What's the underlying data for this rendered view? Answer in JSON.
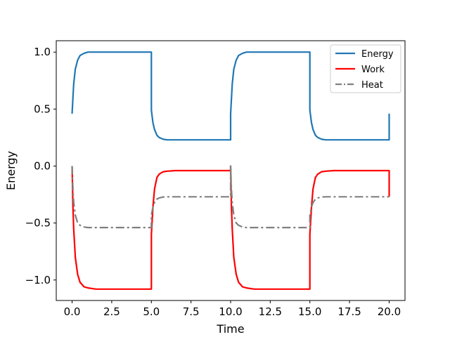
{
  "chart_data": {
    "type": "line",
    "xlabel": "Time",
    "ylabel": "Energy",
    "xlim": [
      -1.0,
      21.0
    ],
    "ylim": [
      -1.18,
      1.1
    ],
    "x_ticks": [
      0.0,
      2.5,
      5.0,
      7.5,
      10.0,
      12.5,
      15.0,
      17.5,
      20.0
    ],
    "x_tick_labels": [
      "0.0",
      "2.5",
      "5.0",
      "7.5",
      "10.0",
      "12.5",
      "15.0",
      "17.5",
      "20.0"
    ],
    "y_ticks": [
      -1.0,
      -0.5,
      0.0,
      0.5,
      1.0
    ],
    "y_tick_labels": [
      "−1.0",
      "−0.5",
      "0.0",
      "0.5",
      "1.0"
    ],
    "grid": false,
    "legend_position": "top-right",
    "series": [
      {
        "name": "Energy",
        "color": "#1f77b4",
        "style": "solid",
        "x": [
          0,
          0.1,
          0.2,
          0.35,
          0.5,
          0.75,
          1.0,
          1.5,
          2.0,
          5.0,
          5.0,
          5.1,
          5.2,
          5.35,
          5.5,
          5.75,
          6.0,
          6.5,
          7.0,
          10.0,
          10.0,
          10.1,
          10.2,
          10.35,
          10.5,
          10.75,
          11.0,
          11.5,
          12.0,
          15.0,
          15.0,
          15.1,
          15.2,
          15.35,
          15.5,
          15.75,
          16.0,
          16.5,
          17.0,
          20.0,
          20.0
        ],
        "y": [
          0.46,
          0.72,
          0.85,
          0.93,
          0.97,
          0.99,
          1.0,
          1.0,
          1.0,
          1.0,
          0.49,
          0.38,
          0.32,
          0.27,
          0.25,
          0.235,
          0.23,
          0.23,
          0.23,
          0.23,
          0.46,
          0.72,
          0.85,
          0.93,
          0.97,
          0.99,
          1.0,
          1.0,
          1.0,
          1.0,
          0.49,
          0.38,
          0.32,
          0.27,
          0.25,
          0.235,
          0.23,
          0.23,
          0.23,
          0.23,
          0.46
        ]
      },
      {
        "name": "Work",
        "color": "#ff0000",
        "style": "solid",
        "x": [
          0,
          0.05,
          0.1,
          0.2,
          0.35,
          0.5,
          0.75,
          1.0,
          1.5,
          2.0,
          5.0,
          5.0,
          5.1,
          5.2,
          5.35,
          5.5,
          5.75,
          6.0,
          6.5,
          7.0,
          10.0,
          10.0,
          10.05,
          10.1,
          10.2,
          10.35,
          10.5,
          10.75,
          11.0,
          11.5,
          12.0,
          15.0,
          15.0,
          15.1,
          15.2,
          15.35,
          15.5,
          15.75,
          16.0,
          16.5,
          17.0,
          20.0,
          20.0
        ],
        "y": [
          0.0,
          -0.35,
          -0.55,
          -0.8,
          -0.95,
          -1.02,
          -1.06,
          -1.07,
          -1.08,
          -1.08,
          -1.08,
          -0.6,
          -0.36,
          -0.2,
          -0.1,
          -0.07,
          -0.05,
          -0.045,
          -0.04,
          -0.04,
          -0.04,
          0.0,
          -0.35,
          -0.55,
          -0.8,
          -0.95,
          -1.02,
          -1.06,
          -1.07,
          -1.08,
          -1.08,
          -1.08,
          -0.6,
          -0.36,
          -0.2,
          -0.1,
          -0.07,
          -0.05,
          -0.045,
          -0.04,
          -0.04,
          -0.04,
          -0.27
        ]
      },
      {
        "name": "Heat",
        "color": "#808080",
        "style": "dashdot",
        "x": [
          0,
          0.05,
          0.1,
          0.2,
          0.35,
          0.5,
          0.75,
          1.0,
          1.5,
          2.0,
          5.0,
          5.0,
          5.1,
          5.2,
          5.35,
          5.5,
          5.75,
          6.0,
          6.5,
          7.0,
          10.0,
          10.0,
          10.05,
          10.1,
          10.2,
          10.35,
          10.5,
          10.75,
          11.0,
          11.5,
          12.0,
          15.0,
          15.0,
          15.1,
          15.2,
          15.35,
          15.5,
          15.75,
          16.0,
          16.5,
          17.0,
          20.0
        ],
        "y": [
          0.0,
          -0.2,
          -0.32,
          -0.43,
          -0.5,
          -0.52,
          -0.535,
          -0.54,
          -0.54,
          -0.54,
          -0.54,
          -0.43,
          -0.36,
          -0.32,
          -0.29,
          -0.28,
          -0.272,
          -0.27,
          -0.27,
          -0.27,
          -0.27,
          0.0,
          -0.2,
          -0.32,
          -0.43,
          -0.5,
          -0.52,
          -0.535,
          -0.54,
          -0.54,
          -0.54,
          -0.54,
          -0.43,
          -0.36,
          -0.32,
          -0.29,
          -0.28,
          -0.272,
          -0.27,
          -0.27,
          -0.27,
          -0.27
        ]
      }
    ]
  }
}
